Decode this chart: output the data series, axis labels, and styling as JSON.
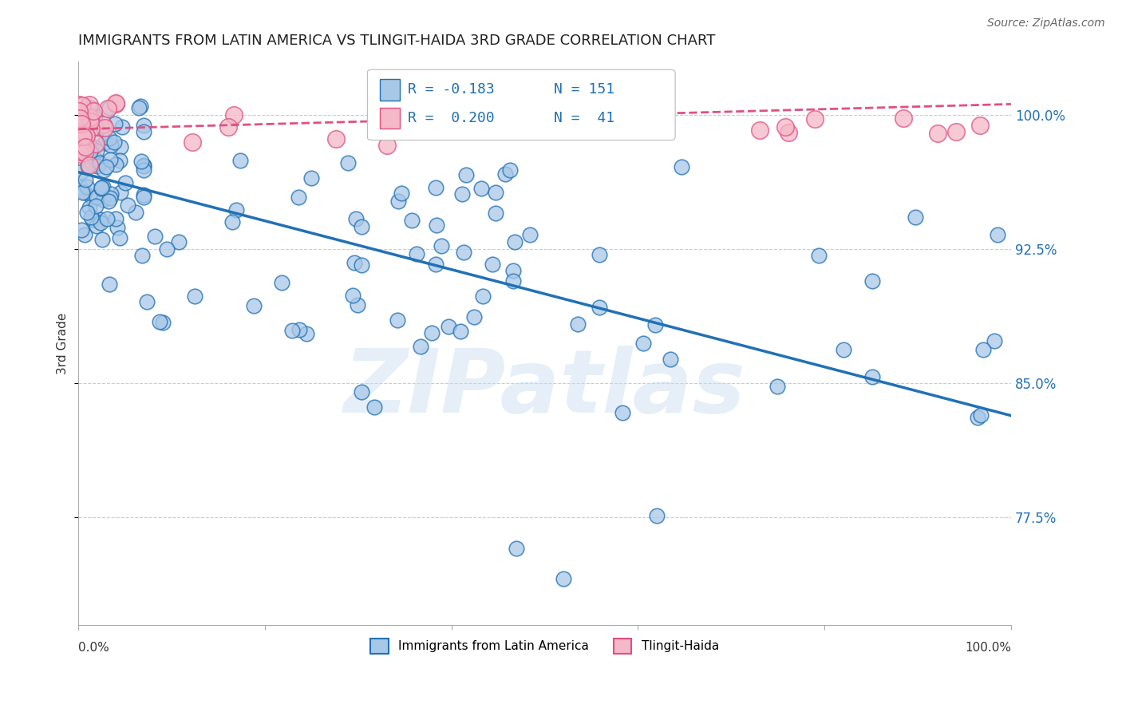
{
  "title": "IMMIGRANTS FROM LATIN AMERICA VS TLINGIT-HAIDA 3RD GRADE CORRELATION CHART",
  "source": "Source: ZipAtlas.com",
  "ylabel": "3rd Grade",
  "watermark": "ZIPatlas",
  "blue_color": "#a8c8e8",
  "pink_color": "#f4b8c8",
  "blue_line_color": "#2171b5",
  "pink_line_color": "#e05080",
  "ytick_labels": [
    "100.0%",
    "92.5%",
    "85.0%",
    "77.5%"
  ],
  "ytick_values": [
    1.0,
    0.925,
    0.85,
    0.775
  ],
  "xlim": [
    0.0,
    1.0
  ],
  "ylim": [
    0.715,
    1.03
  ],
  "blue_trend_y_start": 0.968,
  "blue_trend_y_end": 0.832,
  "pink_trend_y_start": 0.992,
  "pink_trend_y_end": 1.006,
  "legend_r1": "R = -0.183",
  "legend_n1": "N = 151",
  "legend_r2": "R =  0.200",
  "legend_n2": "N =  41"
}
